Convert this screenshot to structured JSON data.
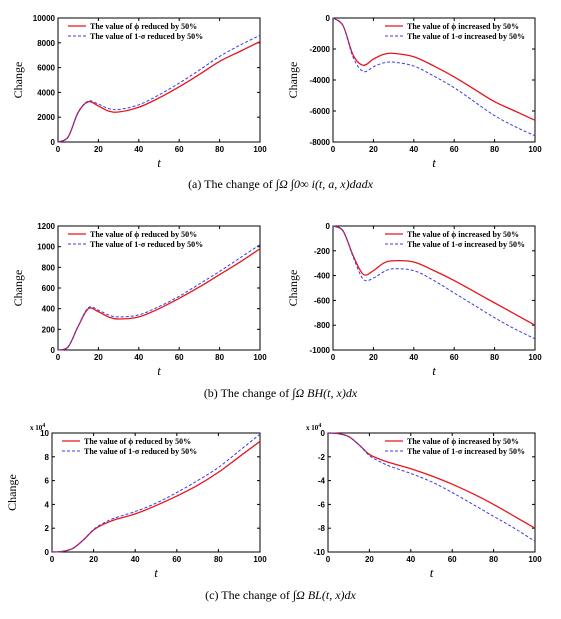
{
  "colors": {
    "red": "#e8141c",
    "blue": "#3a3ae8",
    "axis": "#000000"
  },
  "chart_data": [
    {
      "id": "a-left",
      "type": "line",
      "xlabel": "t",
      "ylabel": "Change",
      "xlim": [
        0,
        100
      ],
      "ylim": [
        0,
        10000
      ],
      "xticks": [
        "0",
        "20",
        "40",
        "60",
        "80",
        "100"
      ],
      "yticks": [
        "0",
        "2000",
        "4000",
        "6000",
        "8000",
        "10000"
      ],
      "xtick_values": [
        0,
        20,
        40,
        60,
        80,
        100
      ],
      "ytick_values": [
        0,
        2000,
        4000,
        6000,
        8000,
        10000
      ],
      "exponent_label": "",
      "legend_position": "top-left",
      "x": [
        0,
        5,
        10,
        15,
        20,
        25,
        30,
        40,
        50,
        60,
        70,
        80,
        90,
        100
      ],
      "series": [
        {
          "name": "The value of ϕ reduced by 50%",
          "color": "red",
          "style": "solid",
          "values": [
            0,
            400,
            2400,
            3250,
            2900,
            2500,
            2420,
            2800,
            3550,
            4450,
            5450,
            6500,
            7300,
            8100
          ]
        },
        {
          "name": "The value of 1-σ reduced by 50%",
          "color": "blue",
          "style": "dashed",
          "values": [
            0,
            400,
            2400,
            3300,
            3050,
            2700,
            2620,
            3000,
            3800,
            4750,
            5800,
            6900,
            7800,
            8600
          ]
        }
      ]
    },
    {
      "id": "a-right",
      "type": "line",
      "xlabel": "t",
      "ylabel": "Change",
      "xlim": [
        0,
        100
      ],
      "ylim": [
        -8000,
        0
      ],
      "xticks": [
        "0",
        "20",
        "40",
        "60",
        "80",
        "100"
      ],
      "yticks": [
        "-8000",
        "-6000",
        "-4000",
        "-2000",
        "0"
      ],
      "xtick_values": [
        0,
        20,
        40,
        60,
        80,
        100
      ],
      "ytick_values": [
        -8000,
        -6000,
        -4000,
        -2000,
        0
      ],
      "exponent_label": "",
      "legend_position": "top-right",
      "x": [
        0,
        5,
        10,
        15,
        20,
        25,
        30,
        40,
        50,
        60,
        70,
        80,
        90,
        100
      ],
      "series": [
        {
          "name": "The value of ϕ increased by 50%",
          "color": "red",
          "style": "solid",
          "values": [
            0,
            -500,
            -2400,
            -3050,
            -2650,
            -2350,
            -2280,
            -2500,
            -3100,
            -3800,
            -4600,
            -5400,
            -6000,
            -6600
          ]
        },
        {
          "name": "The value of 1-σ increased by 50%",
          "color": "blue",
          "style": "dashed",
          "values": [
            0,
            -500,
            -2550,
            -3450,
            -3150,
            -2900,
            -2850,
            -3100,
            -3750,
            -4500,
            -5400,
            -6300,
            -7000,
            -7600
          ]
        }
      ]
    },
    {
      "id": "b-left",
      "type": "line",
      "xlabel": "t",
      "ylabel": "Change",
      "xlim": [
        0,
        100
      ],
      "ylim": [
        0,
        1200
      ],
      "xticks": [
        "0",
        "20",
        "40",
        "60",
        "80",
        "100"
      ],
      "yticks": [
        "0",
        "200",
        "400",
        "600",
        "800",
        "1000",
        "1200"
      ],
      "xtick_values": [
        0,
        20,
        40,
        60,
        80,
        100
      ],
      "ytick_values": [
        0,
        200,
        400,
        600,
        800,
        1000,
        1200
      ],
      "exponent_label": "",
      "legend_position": "top-left",
      "x": [
        0,
        5,
        10,
        15,
        20,
        25,
        30,
        40,
        50,
        60,
        70,
        80,
        90,
        100
      ],
      "series": [
        {
          "name": "The value of ϕ reduced by 50%",
          "color": "red",
          "style": "solid",
          "values": [
            0,
            30,
            230,
            400,
            370,
            320,
            300,
            320,
            400,
            500,
            610,
            730,
            850,
            980
          ]
        },
        {
          "name": "The value of 1-σ reduced by 50%",
          "color": "blue",
          "style": "dashed",
          "values": [
            0,
            30,
            230,
            410,
            385,
            340,
            320,
            340,
            420,
            520,
            640,
            760,
            890,
            1020
          ]
        }
      ]
    },
    {
      "id": "b-right",
      "type": "line",
      "xlabel": "t",
      "ylabel": "Change",
      "xlim": [
        0,
        100
      ],
      "ylim": [
        -1000,
        0
      ],
      "xticks": [
        "0",
        "20",
        "40",
        "60",
        "80",
        "100"
      ],
      "yticks": [
        "-1000",
        "-800",
        "-600",
        "-400",
        "-200",
        "0"
      ],
      "xtick_values": [
        0,
        20,
        40,
        60,
        80,
        100
      ],
      "ytick_values": [
        -1000,
        -800,
        -600,
        -400,
        -200,
        0
      ],
      "exponent_label": "",
      "legend_position": "top-right",
      "x": [
        0,
        5,
        10,
        15,
        20,
        25,
        30,
        40,
        50,
        60,
        70,
        80,
        90,
        100
      ],
      "series": [
        {
          "name": "The value of ϕ increased by 50%",
          "color": "red",
          "style": "solid",
          "values": [
            0,
            -40,
            -240,
            -390,
            -360,
            -300,
            -280,
            -290,
            -360,
            -440,
            -530,
            -620,
            -710,
            -800
          ]
        },
        {
          "name": "The value of 1-σ increased by 50%",
          "color": "blue",
          "style": "dashed",
          "values": [
            0,
            -40,
            -250,
            -430,
            -420,
            -370,
            -345,
            -360,
            -440,
            -540,
            -640,
            -740,
            -830,
            -910
          ]
        }
      ]
    },
    {
      "id": "c-left",
      "type": "line",
      "xlabel": "t",
      "ylabel": "Change",
      "xlim": [
        0,
        100
      ],
      "ylim": [
        0,
        10
      ],
      "xticks": [
        "0",
        "20",
        "40",
        "60",
        "80",
        "100"
      ],
      "yticks": [
        "0",
        "2",
        "4",
        "6",
        "8",
        "10"
      ],
      "xtick_values": [
        0,
        20,
        40,
        60,
        80,
        100
      ],
      "ytick_values": [
        0,
        2,
        4,
        6,
        8,
        10
      ],
      "exponent_label": "x 10",
      "exponent_power": "4",
      "legend_position": "top-left",
      "x": [
        0,
        5,
        10,
        15,
        20,
        25,
        30,
        40,
        50,
        60,
        70,
        80,
        90,
        100
      ],
      "series": [
        {
          "name": "The value of ϕ reduced by 50%",
          "color": "red",
          "style": "solid",
          "values": [
            0,
            0.05,
            0.3,
            1.0,
            1.85,
            2.35,
            2.7,
            3.2,
            3.9,
            4.7,
            5.6,
            6.7,
            8.0,
            9.3
          ]
        },
        {
          "name": "The value of 1-σ reduced by 50%",
          "color": "blue",
          "style": "dashed",
          "values": [
            0,
            0.05,
            0.3,
            1.0,
            1.9,
            2.45,
            2.85,
            3.4,
            4.1,
            5.0,
            6.0,
            7.1,
            8.5,
            9.9
          ]
        }
      ]
    },
    {
      "id": "c-right",
      "type": "line",
      "xlabel": "t",
      "ylabel": "",
      "xlim": [
        0,
        100
      ],
      "ylim": [
        -10,
        0
      ],
      "xticks": [
        "0",
        "20",
        "40",
        "60",
        "80",
        "100"
      ],
      "yticks": [
        "-10",
        "-8",
        "-6",
        "-4",
        "-2",
        "0"
      ],
      "xtick_values": [
        0,
        20,
        40,
        60,
        80,
        100
      ],
      "ytick_values": [
        -10,
        -8,
        -6,
        -4,
        -2,
        0
      ],
      "exponent_label": "x 10",
      "exponent_power": "4",
      "legend_position": "top-right",
      "x": [
        0,
        5,
        10,
        15,
        20,
        25,
        30,
        40,
        50,
        60,
        70,
        80,
        90,
        100
      ],
      "series": [
        {
          "name": "The value of ϕ increased by 50%",
          "color": "red",
          "style": "solid",
          "values": [
            0,
            -0.05,
            -0.3,
            -1.0,
            -1.8,
            -2.2,
            -2.5,
            -3.0,
            -3.6,
            -4.3,
            -5.1,
            -6.0,
            -7.0,
            -8.0
          ]
        },
        {
          "name": "The value of 1-σ increased by 50%",
          "color": "blue",
          "style": "dashed",
          "values": [
            0,
            -0.05,
            -0.3,
            -1.0,
            -1.9,
            -2.4,
            -2.8,
            -3.4,
            -4.1,
            -5.0,
            -6.0,
            -7.0,
            -8.0,
            -9.1
          ]
        }
      ]
    }
  ],
  "captions": {
    "a": {
      "prefix": "(a)  The change of ",
      "formula": "∫Ω ∫0∞ i(t, a, x)dadx"
    },
    "b": {
      "prefix": "(b)  The change of ",
      "formula": "∫Ω BH(t, x)dx"
    },
    "c": {
      "prefix": "(c)  The change of ",
      "formula": "∫Ω BL(t, x)dx"
    }
  }
}
